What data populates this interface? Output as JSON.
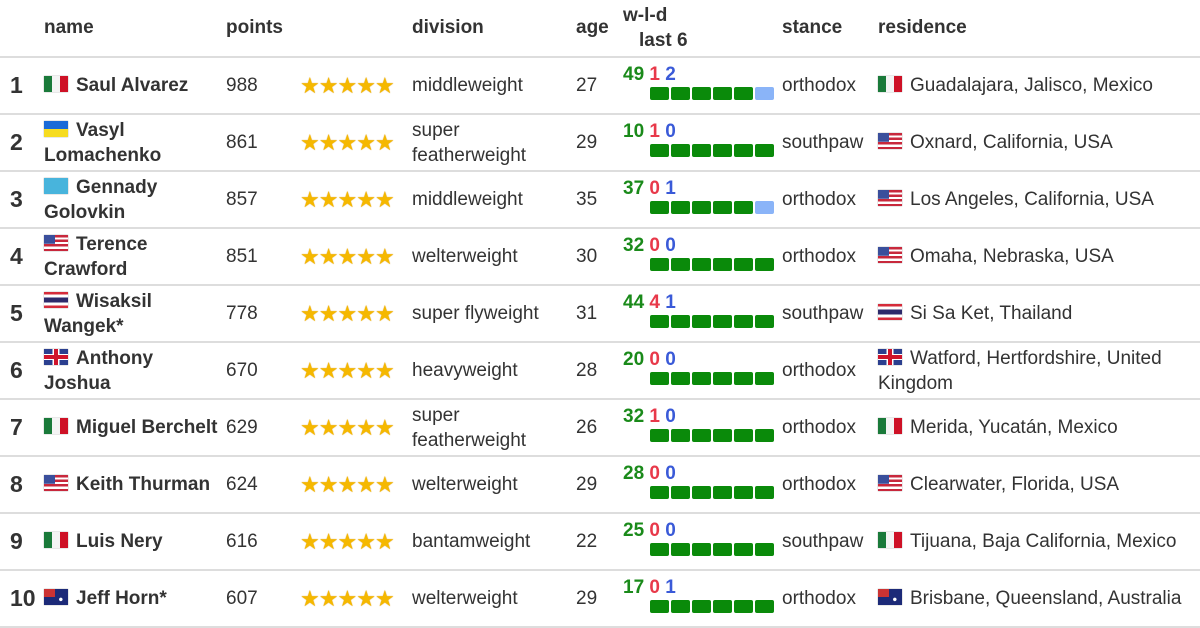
{
  "headers": {
    "rank": "",
    "name": "name",
    "points": "points",
    "stars": "",
    "division": "division",
    "age": "age",
    "wld_line1": "w-l-d",
    "wld_line2": "last 6",
    "stance": "stance",
    "residence": "residence"
  },
  "colors": {
    "win": "#1a8a1a",
    "loss": "#e8394a",
    "draw": "#3a5ad8",
    "star": "#f5b800",
    "bar_win": "#0a8a0a",
    "bar_draw": "#8ab4f8"
  },
  "rows": [
    {
      "rank": "1",
      "flag": "mexico",
      "name": "Saul Alvarez",
      "points": "988",
      "stars": 5,
      "division": "middleweight",
      "age": "27",
      "w": "49",
      "l": "1",
      "d": "2",
      "last6": [
        "W",
        "W",
        "W",
        "W",
        "W",
        "D"
      ],
      "stance": "orthodox",
      "res_flag": "mexico",
      "residence": "Guadalajara, Jalisco, Mexico"
    },
    {
      "rank": "2",
      "flag": "ukraine",
      "name": "Vasyl Lomachenko",
      "points": "861",
      "stars": 5,
      "division": "super featherweight",
      "age": "29",
      "w": "10",
      "l": "1",
      "d": "0",
      "last6": [
        "W",
        "W",
        "W",
        "W",
        "W",
        "W"
      ],
      "stance": "southpaw",
      "res_flag": "usa",
      "residence": "Oxnard, California, USA"
    },
    {
      "rank": "3",
      "flag": "kazakhstan",
      "name": "Gennady Golovkin",
      "points": "857",
      "stars": 5,
      "division": "middleweight",
      "age": "35",
      "w": "37",
      "l": "0",
      "d": "1",
      "last6": [
        "W",
        "W",
        "W",
        "W",
        "W",
        "D"
      ],
      "stance": "orthodox",
      "res_flag": "usa",
      "residence": "Los Angeles, California, USA"
    },
    {
      "rank": "4",
      "flag": "usa",
      "name": "Terence Crawford",
      "points": "851",
      "stars": 5,
      "division": "welterweight",
      "age": "30",
      "w": "32",
      "l": "0",
      "d": "0",
      "last6": [
        "W",
        "W",
        "W",
        "W",
        "W",
        "W"
      ],
      "stance": "orthodox",
      "res_flag": "usa",
      "residence": "Omaha, Nebraska, USA"
    },
    {
      "rank": "5",
      "flag": "thailand",
      "name": "Wisaksil Wangek*",
      "points": "778",
      "stars": 5,
      "division": "super flyweight",
      "age": "31",
      "w": "44",
      "l": "4",
      "d": "1",
      "last6": [
        "W",
        "W",
        "W",
        "W",
        "W",
        "W"
      ],
      "stance": "southpaw",
      "res_flag": "thailand",
      "residence": "Si Sa Ket, Thailand"
    },
    {
      "rank": "6",
      "flag": "uk",
      "name": "Anthony Joshua",
      "points": "670",
      "stars": 5,
      "division": "heavyweight",
      "age": "28",
      "w": "20",
      "l": "0",
      "d": "0",
      "last6": [
        "W",
        "W",
        "W",
        "W",
        "W",
        "W"
      ],
      "stance": "orthodox",
      "res_flag": "uk",
      "residence": "Watford, Hertfordshire, United Kingdom"
    },
    {
      "rank": "7",
      "flag": "mexico",
      "name": "Miguel Berchelt",
      "points": "629",
      "stars": 5,
      "division": "super featherweight",
      "age": "26",
      "w": "32",
      "l": "1",
      "d": "0",
      "last6": [
        "W",
        "W",
        "W",
        "W",
        "W",
        "W"
      ],
      "stance": "orthodox",
      "res_flag": "mexico",
      "residence": "Merida, Yucatán, Mexico"
    },
    {
      "rank": "8",
      "flag": "usa",
      "name": "Keith Thurman",
      "points": "624",
      "stars": 5,
      "division": "welterweight",
      "age": "29",
      "w": "28",
      "l": "0",
      "d": "0",
      "last6": [
        "W",
        "W",
        "W",
        "W",
        "W",
        "W"
      ],
      "stance": "orthodox",
      "res_flag": "usa",
      "residence": "Clearwater, Florida, USA"
    },
    {
      "rank": "9",
      "flag": "mexico",
      "name": "Luis Nery",
      "points": "616",
      "stars": 5,
      "division": "bantamweight",
      "age": "22",
      "w": "25",
      "l": "0",
      "d": "0",
      "last6": [
        "W",
        "W",
        "W",
        "W",
        "W",
        "W"
      ],
      "stance": "southpaw",
      "res_flag": "mexico",
      "residence": "Tijuana, Baja California, Mexico"
    },
    {
      "rank": "10",
      "flag": "australia",
      "name": "Jeff Horn*",
      "points": "607",
      "stars": 5,
      "division": "welterweight",
      "age": "29",
      "w": "17",
      "l": "0",
      "d": "1",
      "last6": [
        "W",
        "W",
        "W",
        "W",
        "W",
        "W"
      ],
      "stance": "orthodox",
      "res_flag": "australia",
      "residence": "Brisbane, Queensland, Australia"
    }
  ]
}
